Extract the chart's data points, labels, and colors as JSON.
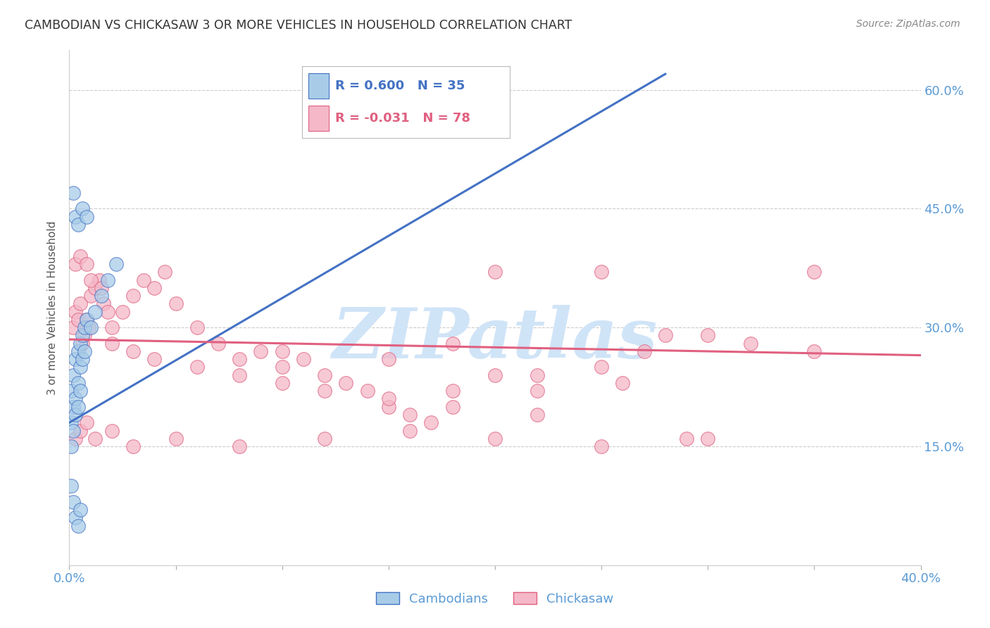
{
  "title": "CAMBODIAN VS CHICKASAW 3 OR MORE VEHICLES IN HOUSEHOLD CORRELATION CHART",
  "source": "Source: ZipAtlas.com",
  "ylabel": "3 or more Vehicles in Household",
  "xmin": 0.0,
  "xmax": 0.4,
  "ymin": 0.0,
  "ymax": 0.65,
  "yticks": [
    0.0,
    0.15,
    0.3,
    0.45,
    0.6
  ],
  "ytick_labels": [
    "",
    "15.0%",
    "30.0%",
    "45.0%",
    "60.0%"
  ],
  "xticks": [
    0.0,
    0.05,
    0.1,
    0.15,
    0.2,
    0.25,
    0.3,
    0.35,
    0.4
  ],
  "xtick_labels": [
    "0.0%",
    "",
    "",
    "",
    "",
    "",
    "",
    "",
    "40.0%"
  ],
  "legend_r_cambodian": "R = 0.600",
  "legend_n_cambodian": "N = 35",
  "legend_r_chickasaw": "R = -0.031",
  "legend_n_chickasaw": "N = 78",
  "color_cambodian": "#a8cce8",
  "color_chickasaw": "#f4b8c8",
  "color_line_cambodian": "#4472c4",
  "color_line_chickasaw": "#e06080",
  "color_axis_label": "#5b9bd5",
  "background": "#ffffff",
  "watermark_text": "ZIPatlas",
  "watermark_color": "#d0e4f7",
  "cambodian_x": [
    0.001,
    0.002,
    0.003,
    0.004,
    0.005,
    0.006,
    0.007,
    0.008,
    0.001,
    0.002,
    0.003,
    0.004,
    0.005,
    0.006,
    0.007,
    0.001,
    0.002,
    0.003,
    0.004,
    0.005,
    0.002,
    0.003,
    0.004,
    0.006,
    0.008,
    0.01,
    0.012,
    0.015,
    0.018,
    0.022,
    0.001,
    0.002,
    0.003,
    0.004,
    0.005
  ],
  "cambodian_y": [
    0.22,
    0.24,
    0.26,
    0.27,
    0.28,
    0.29,
    0.3,
    0.31,
    0.18,
    0.2,
    0.21,
    0.23,
    0.25,
    0.26,
    0.27,
    0.15,
    0.17,
    0.19,
    0.2,
    0.22,
    0.47,
    0.44,
    0.43,
    0.45,
    0.44,
    0.3,
    0.32,
    0.34,
    0.36,
    0.38,
    0.1,
    0.08,
    0.06,
    0.05,
    0.07
  ],
  "cambodian_trend_x": [
    0.0,
    0.28
  ],
  "cambodian_trend_y": [
    0.18,
    0.62
  ],
  "chickasaw_x": [
    0.002,
    0.003,
    0.004,
    0.005,
    0.006,
    0.007,
    0.008,
    0.009,
    0.01,
    0.012,
    0.014,
    0.016,
    0.018,
    0.02,
    0.025,
    0.03,
    0.035,
    0.04,
    0.045,
    0.05,
    0.06,
    0.07,
    0.08,
    0.09,
    0.1,
    0.11,
    0.12,
    0.13,
    0.14,
    0.15,
    0.16,
    0.17,
    0.18,
    0.2,
    0.22,
    0.25,
    0.27,
    0.3,
    0.35,
    0.003,
    0.005,
    0.008,
    0.01,
    0.015,
    0.02,
    0.03,
    0.04,
    0.06,
    0.08,
    0.1,
    0.12,
    0.15,
    0.18,
    0.22,
    0.003,
    0.005,
    0.008,
    0.012,
    0.02,
    0.03,
    0.05,
    0.08,
    0.12,
    0.16,
    0.2,
    0.25,
    0.3,
    0.2,
    0.25,
    0.28,
    0.32,
    0.35,
    0.1,
    0.15,
    0.18,
    0.22,
    0.26,
    0.29
  ],
  "chickasaw_y": [
    0.3,
    0.32,
    0.31,
    0.33,
    0.28,
    0.29,
    0.31,
    0.3,
    0.34,
    0.35,
    0.36,
    0.33,
    0.32,
    0.3,
    0.32,
    0.34,
    0.36,
    0.35,
    0.37,
    0.33,
    0.3,
    0.28,
    0.26,
    0.27,
    0.25,
    0.26,
    0.24,
    0.23,
    0.22,
    0.2,
    0.19,
    0.18,
    0.22,
    0.24,
    0.22,
    0.25,
    0.27,
    0.29,
    0.27,
    0.38,
    0.39,
    0.38,
    0.36,
    0.35,
    0.28,
    0.27,
    0.26,
    0.25,
    0.24,
    0.23,
    0.22,
    0.21,
    0.2,
    0.19,
    0.16,
    0.17,
    0.18,
    0.16,
    0.17,
    0.15,
    0.16,
    0.15,
    0.16,
    0.17,
    0.16,
    0.15,
    0.16,
    0.37,
    0.37,
    0.29,
    0.28,
    0.37,
    0.27,
    0.26,
    0.28,
    0.24,
    0.23,
    0.16
  ],
  "chickasaw_trend_x": [
    0.0,
    0.4
  ],
  "chickasaw_trend_y": [
    0.285,
    0.265
  ]
}
